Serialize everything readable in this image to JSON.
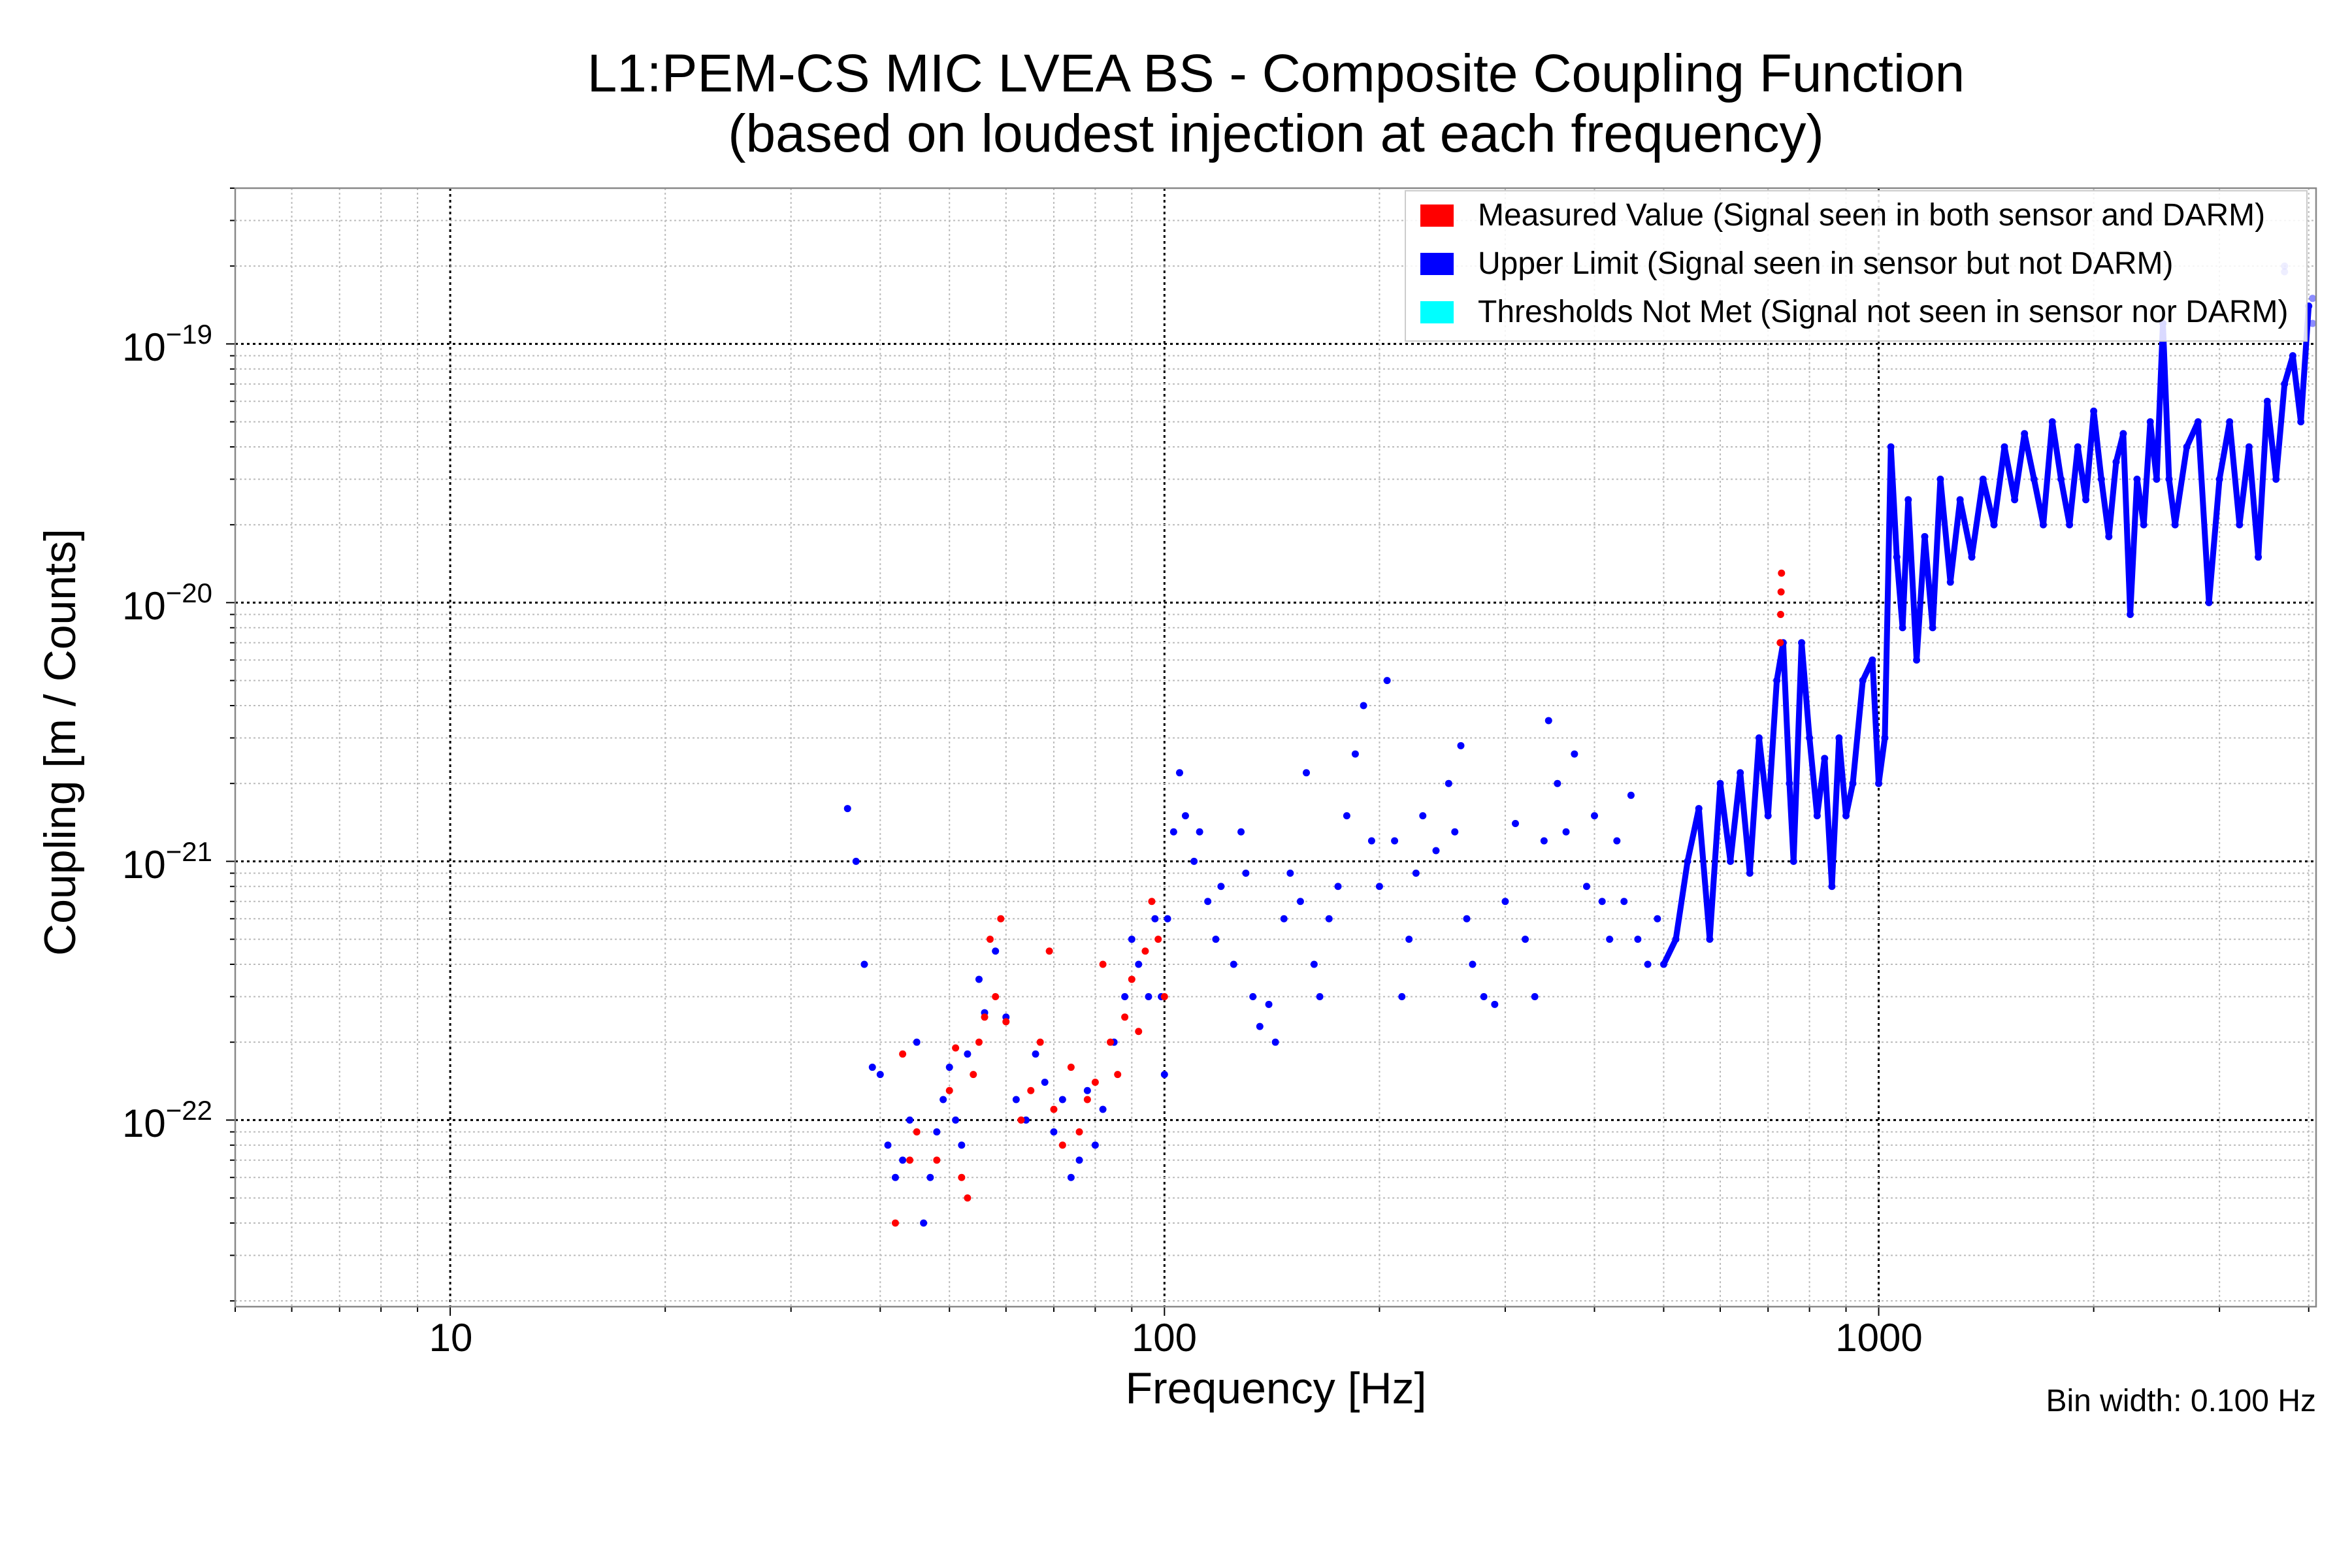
{
  "chart_data": {
    "type": "scatter",
    "title": [
      "L1:PEM-CS MIC LVEA BS - Composite Coupling Function",
      "(based on loudest injection at each frequency)"
    ],
    "xlabel": "Frequency [Hz]",
    "ylabel": "Coupling [m / Counts]",
    "xscale": "log",
    "yscale": "log",
    "xlim": [
      5,
      4096
    ],
    "ylim": [
      1.9e-23,
      4e-19
    ],
    "grid": true,
    "legend_placement": "top-right",
    "annotation": "Bin width: 0.100 Hz",
    "x_ticks": [
      {
        "value": 10,
        "label": "10"
      },
      {
        "value": 100,
        "label": "100"
      },
      {
        "value": 1000,
        "label": "1000"
      }
    ],
    "y_ticks": [
      {
        "value": 1e-19,
        "base": "10",
        "exp": "−19"
      },
      {
        "value": 1e-20,
        "base": "10",
        "exp": "−20"
      },
      {
        "value": 1e-21,
        "base": "10",
        "exp": "−21"
      },
      {
        "value": 1e-22,
        "base": "10",
        "exp": "−22"
      }
    ],
    "series": [
      {
        "name": "Measured Value (Signal seen in both sensor and DARM)",
        "color": "#ff0000",
        "points": [
          [
            42,
            4e-23
          ],
          [
            43,
            1.8e-22
          ],
          [
            44,
            7e-23
          ],
          [
            45,
            9e-23
          ],
          [
            48,
            7e-23
          ],
          [
            50,
            1.3e-22
          ],
          [
            51,
            1.9e-22
          ],
          [
            52,
            6e-23
          ],
          [
            53,
            5e-23
          ],
          [
            54,
            1.5e-22
          ],
          [
            55,
            2e-22
          ],
          [
            56,
            2.5e-22
          ],
          [
            57,
            5e-22
          ],
          [
            58,
            3e-22
          ],
          [
            59,
            6e-22
          ],
          [
            60,
            2.4e-22
          ],
          [
            63,
            1e-22
          ],
          [
            65,
            1.3e-22
          ],
          [
            67,
            2e-22
          ],
          [
            69,
            4.5e-22
          ],
          [
            70,
            1.1e-22
          ],
          [
            72,
            8e-23
          ],
          [
            74,
            1.6e-22
          ],
          [
            76,
            9e-23
          ],
          [
            78,
            1.2e-22
          ],
          [
            80,
            1.4e-22
          ],
          [
            82,
            4e-22
          ],
          [
            84,
            2e-22
          ],
          [
            86,
            1.5e-22
          ],
          [
            88,
            2.5e-22
          ],
          [
            90,
            3.5e-22
          ],
          [
            92,
            2.2e-22
          ],
          [
            94,
            4.5e-22
          ],
          [
            96,
            7e-22
          ],
          [
            98,
            5e-22
          ],
          [
            100,
            3e-22
          ],
          [
            728,
            7e-21
          ],
          [
            729,
            9e-21
          ],
          [
            730,
            1.1e-20
          ],
          [
            731,
            1.3e-20
          ]
        ]
      },
      {
        "name": "Upper Limit (Signal seen in sensor but not DARM)",
        "color": "#0000ff",
        "points": [
          [
            36,
            1.6e-21
          ],
          [
            37,
            1e-21
          ],
          [
            38,
            4e-22
          ],
          [
            39,
            1.6e-22
          ],
          [
            40,
            1.5e-22
          ],
          [
            41,
            8e-23
          ],
          [
            42,
            6e-23
          ],
          [
            43,
            7e-23
          ],
          [
            44,
            1e-22
          ],
          [
            45,
            2e-22
          ],
          [
            46,
            4e-23
          ],
          [
            47,
            6e-23
          ],
          [
            48,
            9e-23
          ],
          [
            49,
            1.2e-22
          ],
          [
            50,
            1.6e-22
          ],
          [
            51,
            1e-22
          ],
          [
            52,
            8e-23
          ],
          [
            53,
            1.8e-22
          ],
          [
            55,
            3.5e-22
          ],
          [
            56,
            2.6e-22
          ],
          [
            58,
            4.5e-22
          ],
          [
            60,
            2.5e-22
          ],
          [
            62,
            1.2e-22
          ],
          [
            64,
            1e-22
          ],
          [
            66,
            1.8e-22
          ],
          [
            68,
            1.4e-22
          ],
          [
            70,
            9e-23
          ],
          [
            72,
            1.2e-22
          ],
          [
            74,
            6e-23
          ],
          [
            76,
            7e-23
          ],
          [
            78,
            1.3e-22
          ],
          [
            80,
            8e-23
          ],
          [
            82,
            1.1e-22
          ],
          [
            85,
            2e-22
          ],
          [
            88,
            3e-22
          ],
          [
            90,
            5e-22
          ],
          [
            92,
            4e-22
          ],
          [
            95,
            3e-22
          ],
          [
            97,
            6e-22
          ],
          [
            99,
            3e-22
          ],
          [
            100,
            1.5e-22
          ],
          [
            101,
            6e-22
          ],
          [
            103,
            1.3e-21
          ],
          [
            105,
            2.2e-21
          ],
          [
            107,
            1.5e-21
          ],
          [
            110,
            1e-21
          ],
          [
            112,
            1.3e-21
          ],
          [
            115,
            7e-22
          ],
          [
            118,
            5e-22
          ],
          [
            120,
            8e-22
          ],
          [
            125,
            4e-22
          ],
          [
            128,
            1.3e-21
          ],
          [
            130,
            9e-22
          ],
          [
            133,
            3e-22
          ],
          [
            136,
            2.3e-22
          ],
          [
            140,
            2.8e-22
          ],
          [
            143,
            2e-22
          ],
          [
            147,
            6e-22
          ],
          [
            150,
            9e-22
          ],
          [
            155,
            7e-22
          ],
          [
            158,
            2.2e-21
          ],
          [
            162,
            4e-22
          ],
          [
            165,
            3e-22
          ],
          [
            170,
            6e-22
          ],
          [
            175,
            8e-22
          ],
          [
            180,
            1.5e-21
          ],
          [
            185,
            2.6e-21
          ],
          [
            190,
            4e-21
          ],
          [
            195,
            1.2e-21
          ],
          [
            200,
            8e-22
          ],
          [
            205,
            5e-21
          ],
          [
            210,
            1.2e-21
          ],
          [
            215,
            3e-22
          ],
          [
            220,
            5e-22
          ],
          [
            225,
            9e-22
          ],
          [
            230,
            1.5e-21
          ],
          [
            240,
            1.1e-21
          ],
          [
            250,
            2e-21
          ],
          [
            255,
            1.3e-21
          ],
          [
            260,
            2.8e-21
          ],
          [
            265,
            6e-22
          ],
          [
            270,
            4e-22
          ],
          [
            280,
            3e-22
          ],
          [
            290,
            2.8e-22
          ],
          [
            300,
            7e-22
          ],
          [
            310,
            1.4e-21
          ],
          [
            320,
            5e-22
          ],
          [
            330,
            3e-22
          ],
          [
            340,
            1.2e-21
          ],
          [
            345,
            3.5e-21
          ],
          [
            355,
            2e-21
          ],
          [
            365,
            1.3e-21
          ],
          [
            375,
            2.6e-21
          ],
          [
            390,
            8e-22
          ],
          [
            400,
            1.5e-21
          ],
          [
            410,
            7e-22
          ],
          [
            420,
            5e-22
          ],
          [
            430,
            1.2e-21
          ],
          [
            440,
            7e-22
          ],
          [
            450,
            1.8e-21
          ],
          [
            460,
            5e-22
          ],
          [
            475,
            4e-22
          ],
          [
            490,
            6e-22
          ],
          [
            500,
            4e-22
          ],
          [
            520,
            5e-22
          ],
          [
            540,
            1e-21
          ],
          [
            560,
            1.6e-21
          ],
          [
            580,
            5e-22
          ],
          [
            600,
            2e-21
          ],
          [
            620,
            1e-21
          ],
          [
            640,
            2.2e-21
          ],
          [
            660,
            9e-22
          ],
          [
            680,
            3e-21
          ],
          [
            700,
            1.5e-21
          ],
          [
            720,
            5e-21
          ],
          [
            735,
            7e-21
          ],
          [
            750,
            2e-21
          ],
          [
            760,
            1e-21
          ],
          [
            780,
            7e-21
          ],
          [
            800,
            3e-21
          ],
          [
            820,
            1.5e-21
          ],
          [
            840,
            2.5e-21
          ],
          [
            860,
            8e-22
          ],
          [
            880,
            3e-21
          ],
          [
            900,
            1.5e-21
          ],
          [
            920,
            2e-21
          ],
          [
            950,
            5e-21
          ],
          [
            980,
            6e-21
          ],
          [
            1000,
            2e-21
          ],
          [
            1020,
            3e-21
          ],
          [
            1040,
            4e-20
          ],
          [
            1060,
            1.5e-20
          ],
          [
            1080,
            8e-21
          ],
          [
            1100,
            2.5e-20
          ],
          [
            1130,
            6e-21
          ],
          [
            1160,
            1.8e-20
          ],
          [
            1190,
            8e-21
          ],
          [
            1220,
            3e-20
          ],
          [
            1260,
            1.2e-20
          ],
          [
            1300,
            2.5e-20
          ],
          [
            1350,
            1.5e-20
          ],
          [
            1400,
            3e-20
          ],
          [
            1450,
            2e-20
          ],
          [
            1500,
            4e-20
          ],
          [
            1550,
            2.5e-20
          ],
          [
            1600,
            4.5e-20
          ],
          [
            1650,
            3e-20
          ],
          [
            1700,
            2e-20
          ],
          [
            1750,
            5e-20
          ],
          [
            1800,
            3e-20
          ],
          [
            1850,
            2e-20
          ],
          [
            1900,
            4e-20
          ],
          [
            1950,
            2.5e-20
          ],
          [
            2000,
            5.5e-20
          ],
          [
            2050,
            3e-20
          ],
          [
            2100,
            1.8e-20
          ],
          [
            2150,
            3.5e-20
          ],
          [
            2200,
            4.5e-20
          ],
          [
            2250,
            9e-21
          ],
          [
            2300,
            3e-20
          ],
          [
            2350,
            2e-20
          ],
          [
            2400,
            5e-20
          ],
          [
            2450,
            3e-20
          ],
          [
            2500,
            1.2e-19
          ],
          [
            2550,
            3e-20
          ],
          [
            2600,
            2e-20
          ],
          [
            2700,
            4e-20
          ],
          [
            2800,
            5e-20
          ],
          [
            2900,
            1e-20
          ],
          [
            3000,
            3e-20
          ],
          [
            3100,
            5e-20
          ],
          [
            3200,
            2e-20
          ],
          [
            3300,
            4e-20
          ],
          [
            3400,
            1.5e-20
          ],
          [
            3500,
            6e-20
          ],
          [
            3600,
            3e-20
          ],
          [
            3700,
            7e-20
          ],
          [
            3800,
            9e-20
          ],
          [
            3900,
            5e-20
          ],
          [
            4000,
            1.4e-19
          ]
        ]
      },
      {
        "name": "Thresholds Not Met (Signal not seen in sensor nor DARM)",
        "color": "#00ffff",
        "points": []
      }
    ],
    "faded_upper_limit_points": [
      [
        3700,
        1.9e-19
      ],
      [
        3700,
        2e-19
      ],
      [
        4050,
        1.5e-19
      ],
      [
        4050,
        1.2e-19
      ]
    ]
  }
}
